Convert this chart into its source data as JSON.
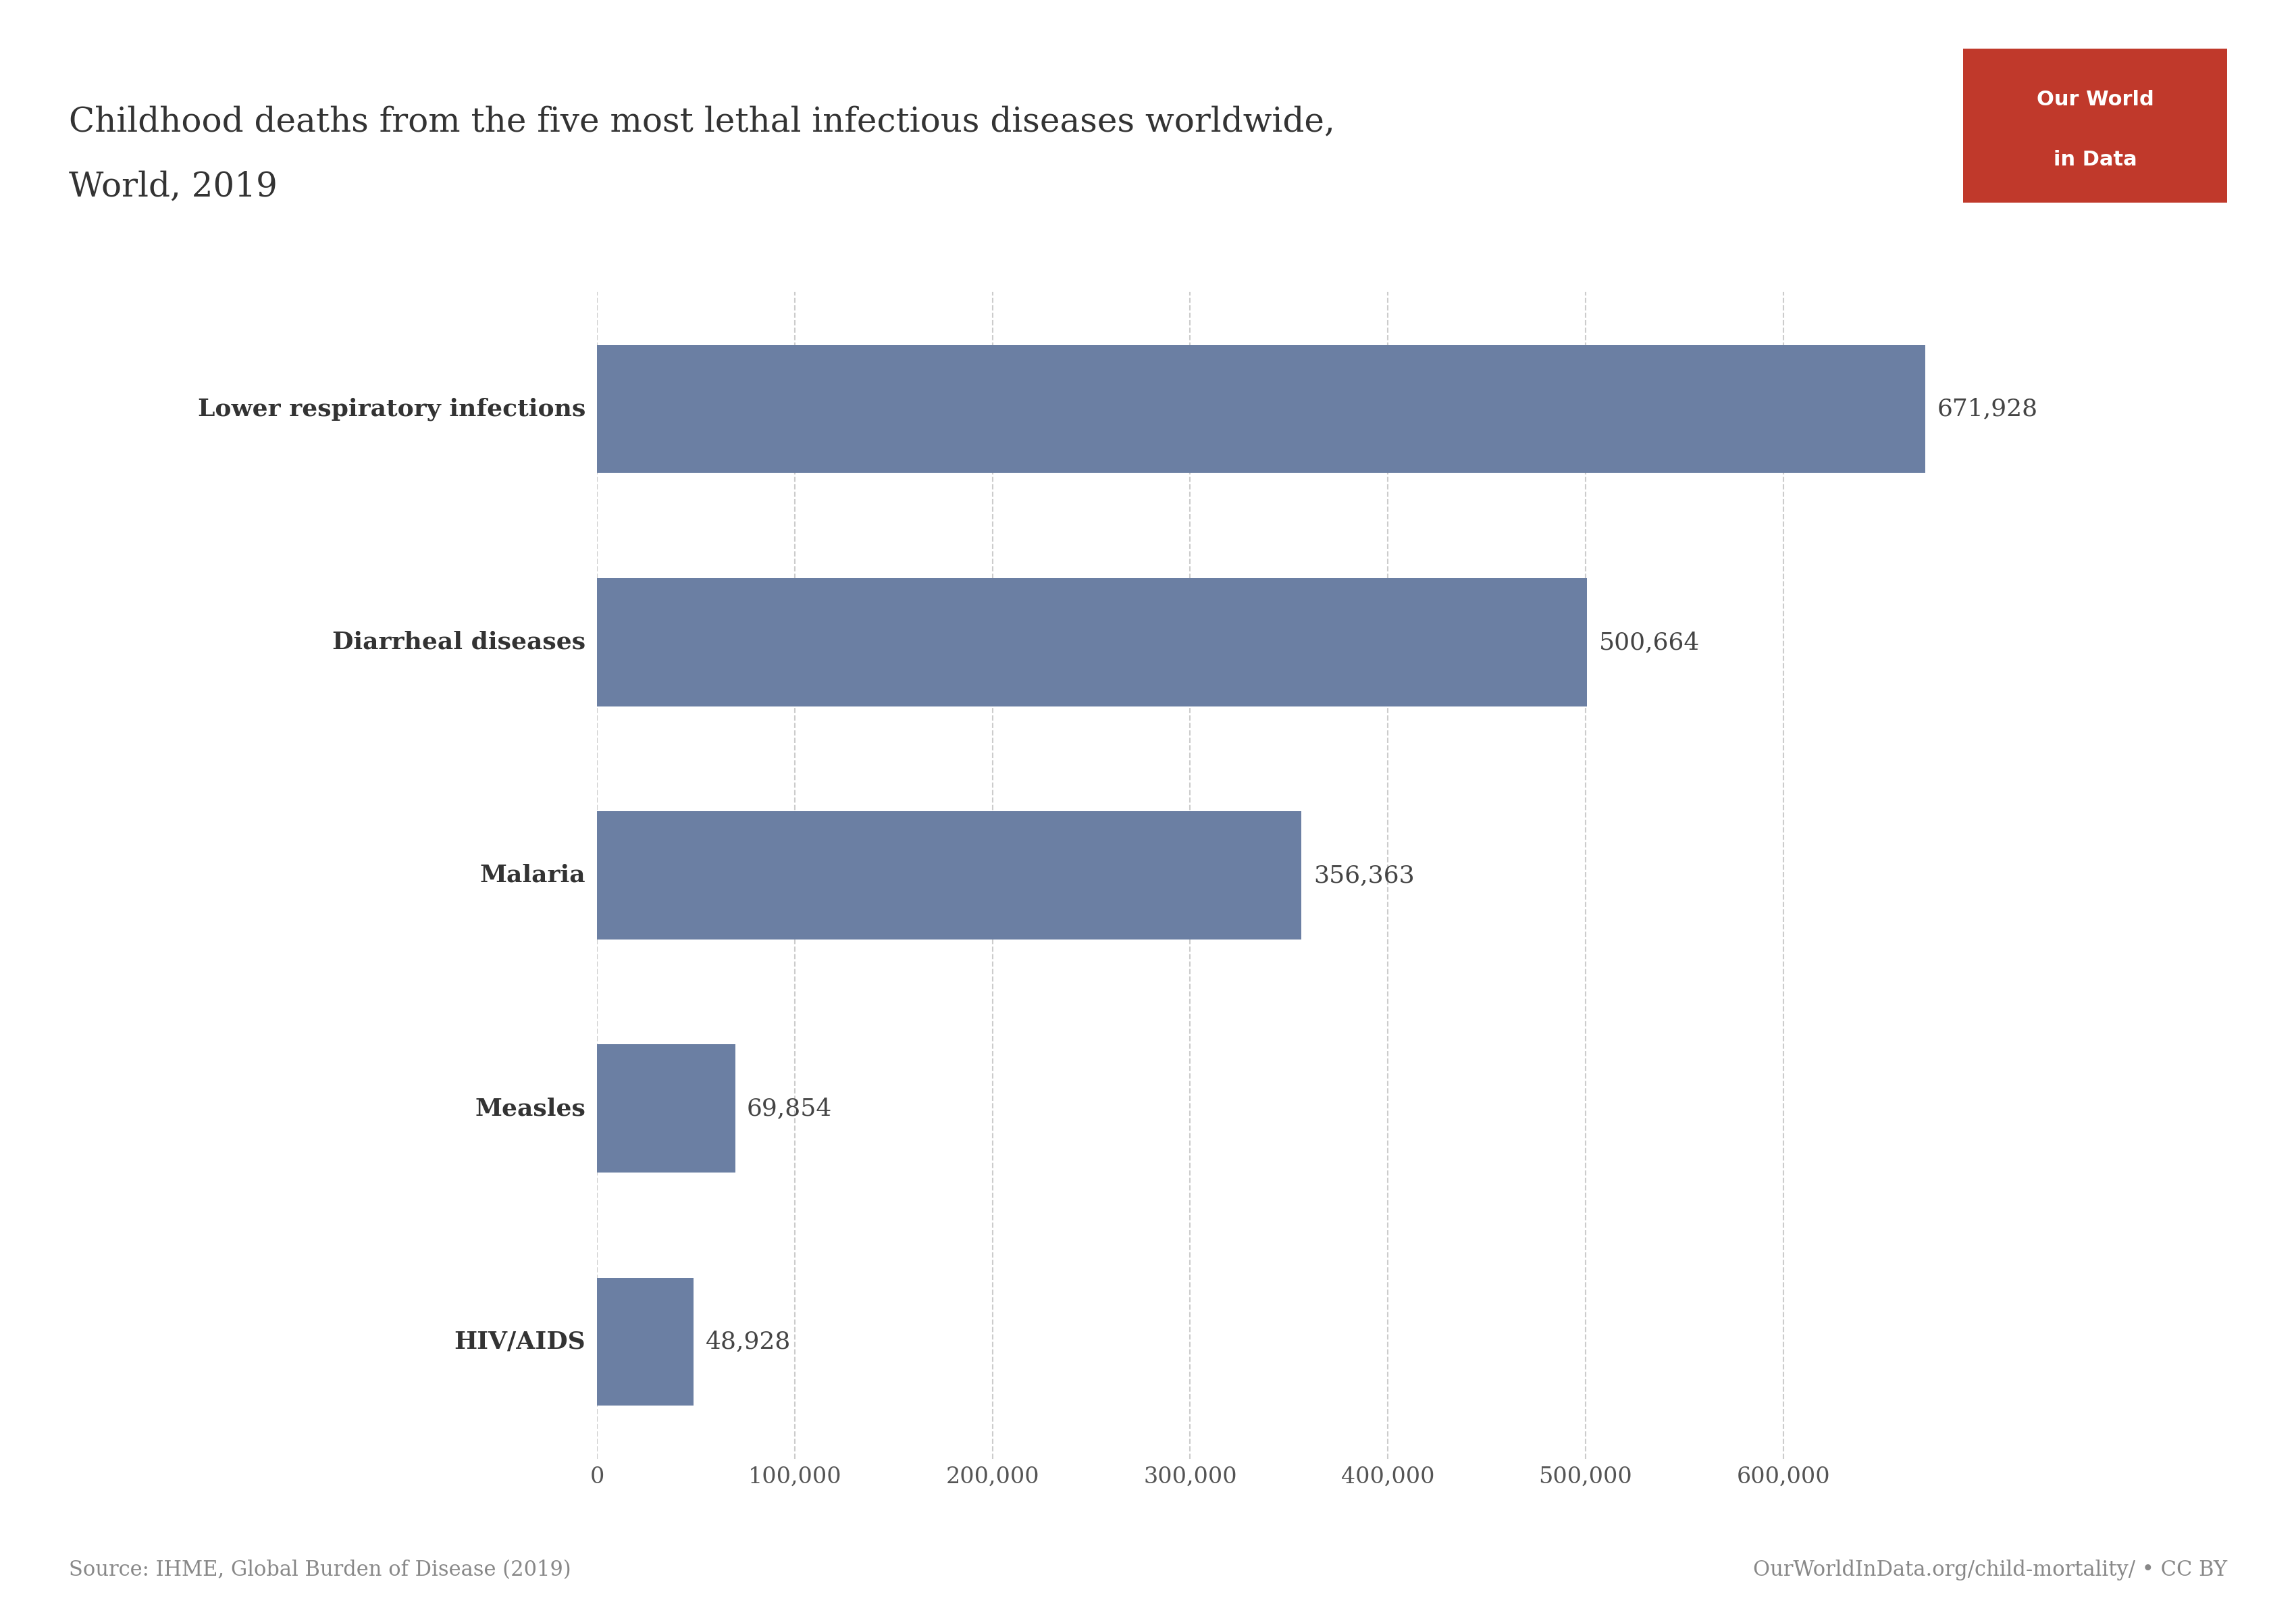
{
  "title_line1": "Childhood deaths from the five most lethal infectious diseases worldwide,",
  "title_line2": "World, 2019",
  "categories": [
    "Lower respiratory infections",
    "Diarrheal diseases",
    "Malaria",
    "Measles",
    "HIV/AIDS"
  ],
  "values": [
    671928,
    500664,
    356363,
    69854,
    48928
  ],
  "labels": [
    "671,928",
    "500,664",
    "356,363",
    "69,854",
    "48,928"
  ],
  "bar_color": "#6b7fa3",
  "background_color": "#ffffff",
  "source_text": "Source: IHME, Global Burden of Disease (2019)",
  "url_text": "OurWorldInData.org/child-mortality/ • CC BY",
  "owid_box_color": "#c0392b",
  "owid_text_line1": "Our World",
  "owid_text_line2": "in Data",
  "xlim": [
    0,
    720000
  ],
  "xticks": [
    0,
    100000,
    200000,
    300000,
    400000,
    500000,
    600000
  ],
  "xtick_labels": [
    "0",
    "100,000",
    "200,000",
    "300,000",
    "400,000",
    "500,000",
    "600,000"
  ],
  "title_fontsize": 36,
  "label_fontsize": 26,
  "tick_fontsize": 24,
  "source_fontsize": 22,
  "category_fontsize": 26,
  "bar_height": 0.55
}
